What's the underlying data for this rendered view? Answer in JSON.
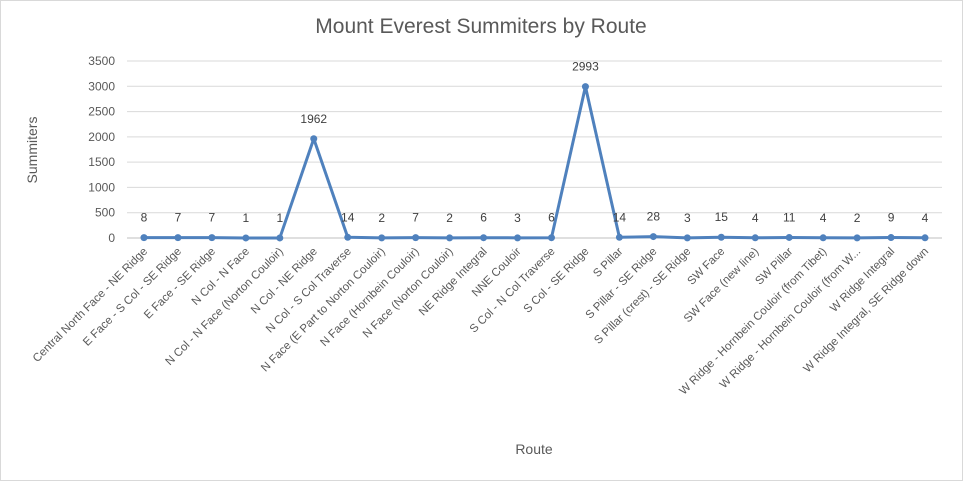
{
  "chart_data": {
    "type": "line",
    "title": "Mount Everest Summiters by Route",
    "xlabel": "Route",
    "ylabel": "Summiters",
    "ylim": [
      0,
      3500
    ],
    "yticks": [
      0,
      500,
      1000,
      1500,
      2000,
      2500,
      3000,
      3500
    ],
    "grid": true,
    "legend": "none",
    "line_color": "#4f81bd",
    "categories": [
      "Central North Face - NE Ridge",
      "E Face - S Col - SE Ridge",
      "E Face - SE Ridge",
      "N Col - N Face",
      "N Col - N Face (Norton Couloir)",
      "N Col - NE Ridge",
      "N Col - S Col Traverse",
      "N Face (E Part to Norton Couloir)",
      "N Face (Hornbein Couloir)",
      "N Face (Norton Couloir)",
      "NE Ridge Integral",
      "NNE Couloir",
      "S Col - N Col Traverse",
      "S Col - SE Ridge",
      "S Pillar",
      "S Pillar - SE Ridge",
      "S Pillar (crest) - SE Ridge",
      "SW Face",
      "SW Face (new line)",
      "SW Pillar",
      "W Ridge - Hornbein Couloir (from Tibet)",
      "W Ridge - Hornbein Couloir (from W...",
      "W Ridge Integral",
      "W Ridge Integral, SE Ridge down"
    ],
    "values": [
      8,
      7,
      7,
      1,
      1,
      1962,
      14,
      2,
      7,
      2,
      6,
      3,
      6,
      2993,
      14,
      28,
      3,
      15,
      4,
      11,
      4,
      2,
      9,
      4
    ]
  }
}
